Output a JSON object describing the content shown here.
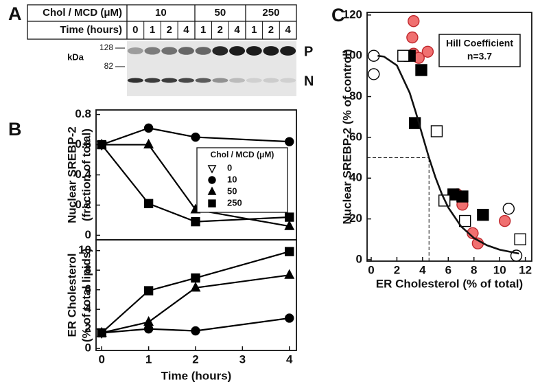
{
  "panel_labels": [
    "A",
    "B",
    "C"
  ],
  "blot": {
    "treatment_label": "Chol / MCD (μM)",
    "concentrations": [
      10,
      50,
      250
    ],
    "time_label": "Time (hours)",
    "times": [
      0,
      1,
      2,
      4,
      1,
      2,
      4,
      1,
      2,
      4
    ],
    "mw_unit": "kDa",
    "mw_markers": [
      128,
      82
    ],
    "band_labels": [
      "P",
      "N"
    ]
  },
  "chart_data": [
    {
      "type": "line",
      "ylabel": [
        "Nuclear SREBP-2",
        "(fraction of total)"
      ],
      "xlim": [
        -0.12,
        4.15
      ],
      "ylim": [
        -0.03,
        0.83
      ],
      "yticks": [
        0,
        0.2,
        0.4,
        0.6,
        0.8
      ],
      "legend_title": "Chol / MCD (μM)",
      "legend": "right",
      "series": [
        {
          "name": "0",
          "marker": "triangle-down",
          "filled": false,
          "color": "#000000",
          "x": [
            0
          ],
          "values": [
            0.6
          ]
        },
        {
          "name": "10",
          "marker": "circle",
          "filled": true,
          "color": "#000000",
          "x": [
            0,
            1,
            2,
            4
          ],
          "values": [
            0.6,
            0.71,
            0.65,
            0.62
          ]
        },
        {
          "name": "50",
          "marker": "triangle-up",
          "filled": true,
          "color": "#000000",
          "x": [
            0,
            1,
            2,
            4
          ],
          "values": [
            0.6,
            0.6,
            0.17,
            0.06
          ]
        },
        {
          "name": "250",
          "marker": "square",
          "filled": true,
          "color": "#000000",
          "x": [
            0,
            1,
            2,
            4
          ],
          "values": [
            0.6,
            0.21,
            0.09,
            0.12
          ]
        }
      ]
    },
    {
      "type": "line",
      "ylabel": [
        "ER Cholesterol",
        "(% of total lipids)"
      ],
      "xlabel": "Time (hours)",
      "xlim": [
        -0.12,
        4.15
      ],
      "xticks": [
        0,
        1,
        2,
        3,
        4
      ],
      "ylim": [
        -0.2,
        11.1
      ],
      "yticks": [
        0,
        2,
        4,
        6,
        8,
        10
      ],
      "series": [
        {
          "marker": "triangle-down",
          "filled": false,
          "color": "#000000",
          "x": [
            0
          ],
          "values": [
            1.6
          ]
        },
        {
          "marker": "circle",
          "filled": true,
          "color": "#000000",
          "x": [
            0,
            1,
            2,
            4
          ],
          "values": [
            1.6,
            2.0,
            1.8,
            3.1
          ]
        },
        {
          "marker": "triangle-up",
          "filled": true,
          "color": "#000000",
          "x": [
            0,
            1,
            2,
            4
          ],
          "values": [
            1.6,
            2.7,
            6.2,
            7.5
          ]
        },
        {
          "marker": "square",
          "filled": true,
          "color": "#000000",
          "x": [
            0,
            1,
            2,
            4
          ],
          "values": [
            1.6,
            5.9,
            7.2,
            9.9
          ]
        }
      ]
    },
    {
      "type": "scatter",
      "xlabel": "ER Cholesterol (% of total)",
      "ylabel": [
        "Nuclear SREBP-2 (% of control)"
      ],
      "xlim": [
        -0.32,
        12.5
      ],
      "xticks": [
        0,
        2,
        4,
        6,
        8,
        10,
        12
      ],
      "ylim": [
        -0.7,
        121.3
      ],
      "yticks": [
        0,
        20,
        40,
        60,
        80,
        100,
        120
      ],
      "annotation": [
        "Hill Coefficient",
        "n=3.7"
      ],
      "guides": {
        "x": 4.5,
        "y": 50
      },
      "curve": {
        "x": [
          0.5,
          1,
          2,
          3,
          3.5,
          4,
          4.5,
          5,
          5.5,
          6,
          7,
          8,
          9,
          10,
          11.5
        ],
        "values": [
          100,
          99.6,
          95.3,
          81.8,
          71.7,
          60.7,
          50,
          40.4,
          32.2,
          25.6,
          16.3,
          10.6,
          7.1,
          4.9,
          3.0
        ]
      },
      "series": [
        {
          "marker": "circle",
          "filled": true,
          "color": "#f07070",
          "edge_color": "#c0282d",
          "x": [
            3.3,
            3.2,
            3.3,
            4.4,
            3.7,
            2.9,
            6.7,
            7.1,
            7.9,
            8.3,
            10.4
          ],
          "values": [
            117,
            109,
            101,
            102,
            99,
            100,
            32,
            27,
            13,
            8,
            19
          ]
        },
        {
          "marker": "square",
          "filled": true,
          "color": "#000000",
          "x": [
            3.0,
            3.9,
            3.4,
            6.4,
            7.1,
            8.7
          ],
          "values": [
            100,
            93,
            67,
            32,
            31,
            22
          ]
        },
        {
          "marker": "square",
          "filled": false,
          "color": "#000000",
          "x": [
            2.5,
            5.1,
            5.7,
            7.3,
            11.6
          ],
          "values": [
            100,
            63,
            29,
            19,
            10
          ]
        },
        {
          "marker": "circle",
          "filled": false,
          "color": "#000000",
          "x": [
            0.2,
            0.2,
            10.7,
            11.3
          ],
          "values": [
            100,
            91,
            25,
            2
          ]
        }
      ]
    }
  ]
}
